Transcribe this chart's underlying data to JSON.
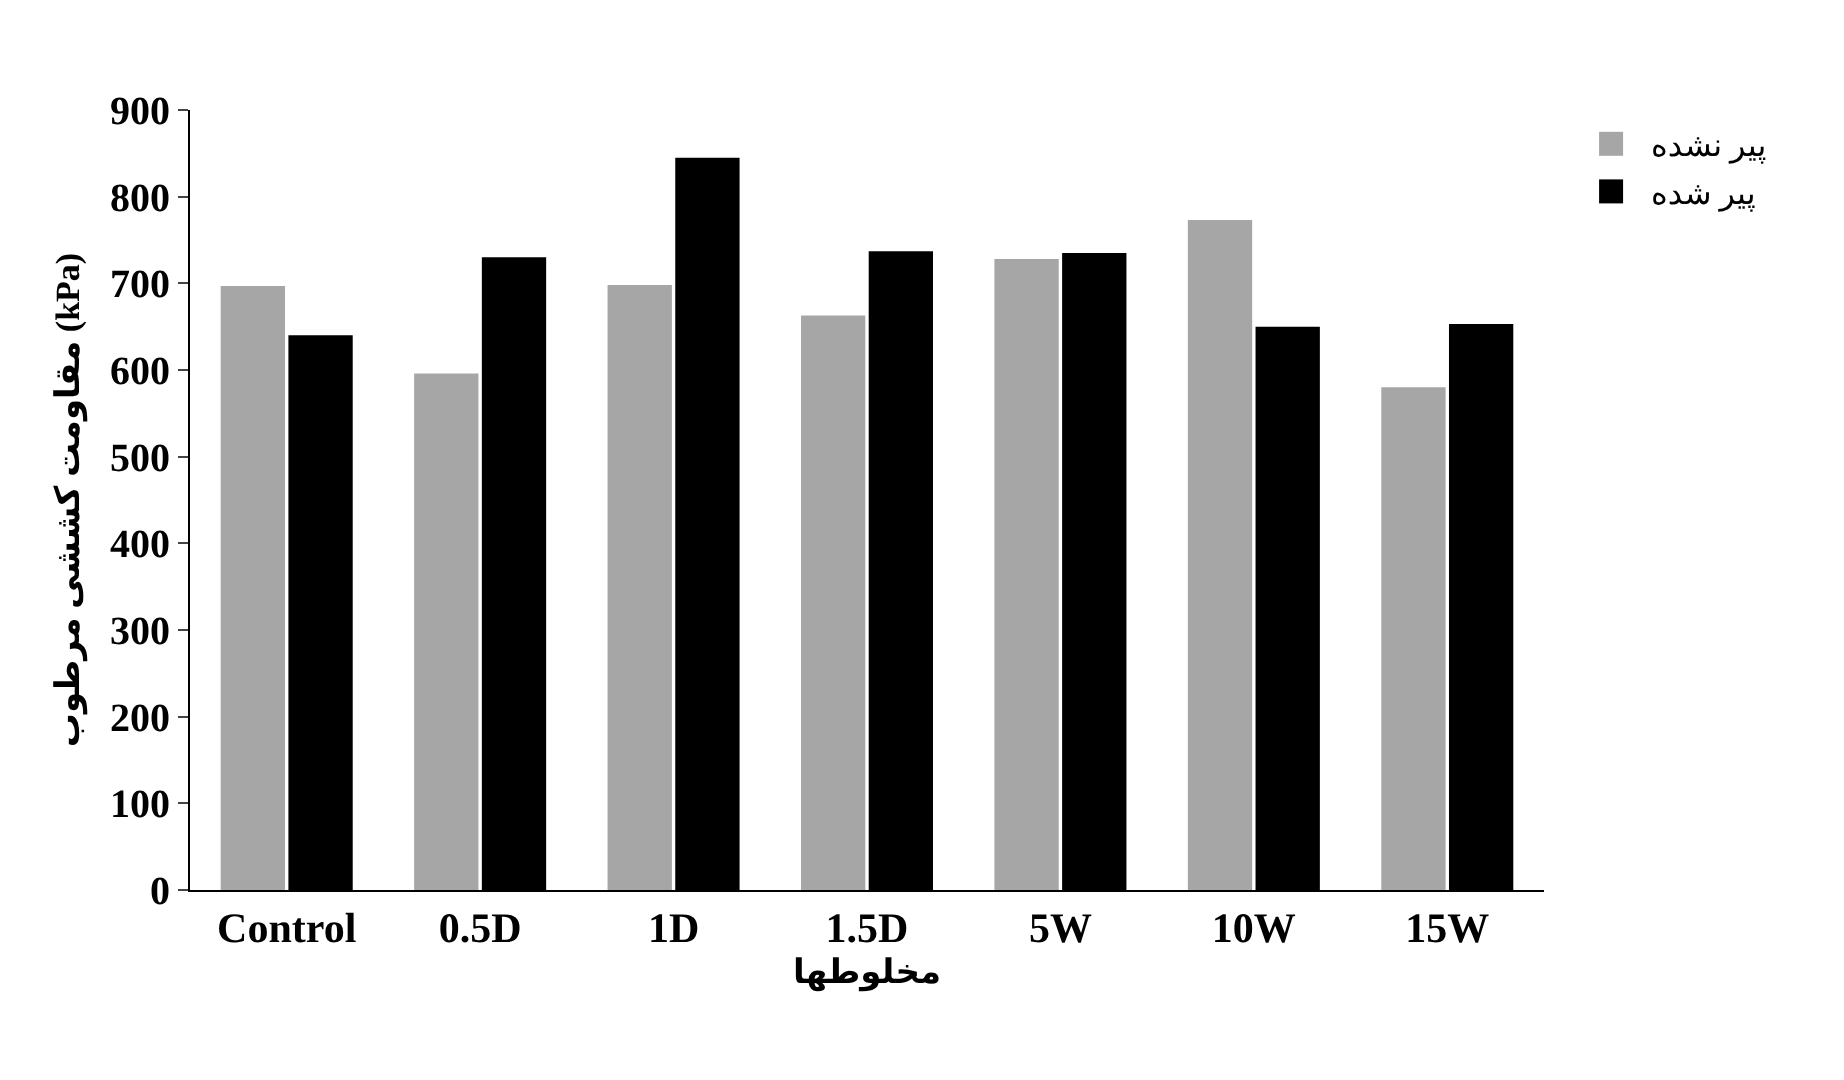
{
  "chart_data": {
    "type": "bar",
    "xlabel": "مخلوطها",
    "ylabel": "مقاومت کششی مرطوب (kPa)",
    "categories": [
      "Control",
      "0.5D",
      "1D",
      "1.5D",
      "5W",
      "10W",
      "15W"
    ],
    "series": [
      {
        "name": "پیر نشده",
        "color": "#a6a6a6",
        "values": [
          697,
          596,
          698,
          663,
          728,
          773,
          580
        ]
      },
      {
        "name": "پیر شده",
        "color": "#000000",
        "values": [
          640,
          730,
          845,
          737,
          735,
          650,
          653
        ]
      }
    ],
    "ylim": [
      0,
      900
    ],
    "yticks": [
      0,
      100,
      200,
      300,
      400,
      500,
      600,
      700,
      800,
      900
    ],
    "grid": false,
    "legend": "top right"
  }
}
